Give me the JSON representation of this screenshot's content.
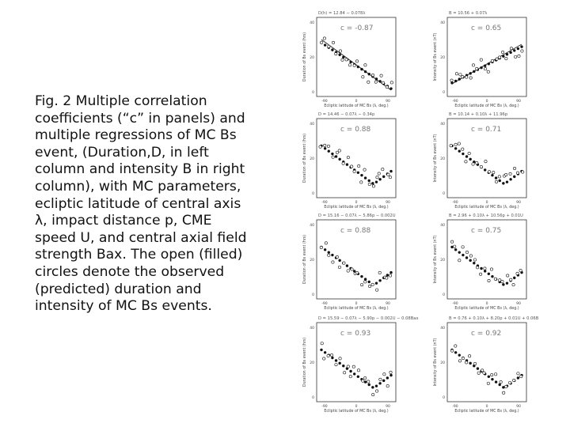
{
  "caption": "Fig. 2  Multiple correlation coefficients (“c” in panels) and multiple regressions of MC Bs event,   (Duration,D, in left column and intensity B in right column), with MC parameters,  ecliptic latitude of central axis λ,  impact distance p, CME speed U, and central axial field strength Bax. The open (filled) circles denote the observed (predicted) duration and intensity of MC Bs events.",
  "figure": {
    "panels": [
      {
        "id": "r1-left",
        "c_label": "c = -0.87",
        "header": "D(h) = 12.84 − 0.078λ",
        "xlabel": "Ecliptic latitude of MC Bs (λ, deg.)",
        "ylabel": "Duration of Bs event (hrs)",
        "trend": "down"
      },
      {
        "id": "r1-right",
        "c_label": "c = 0.65",
        "header": "B = 10.56 + 0.07λ",
        "xlabel": "Ecliptic latitude of MC Bs (λ, deg.)",
        "ylabel": "Intensity of Bs event (nT)",
        "trend": "up"
      },
      {
        "id": "r2-left",
        "c_label": "c = 0.88",
        "header": "D = 14.46 − 0.07λ − 0.34p",
        "xlabel": "Ecliptic latitude of MC Bs (λ, deg.)",
        "ylabel": "Duration of Bs event (hrs)",
        "trend": "vee"
      },
      {
        "id": "r2-right",
        "c_label": "c = 0.71",
        "header": "B = 10.14 + 0.10λ + 11.96p",
        "xlabel": "Ecliptic latitude of MC Bs (λ, deg.)",
        "ylabel": "Intensity of Bs event (nT)",
        "trend": "vee"
      },
      {
        "id": "r3-left",
        "c_label": "c = 0.88",
        "header": "D = 15.16 − 0.07λ − 5.86p − 0.002U",
        "xlabel": "Ecliptic latitude of MC Bs (λ, deg.)",
        "ylabel": "Duration of Bs event (hrs)",
        "trend": "vee"
      },
      {
        "id": "r3-right",
        "c_label": "c = 0.75",
        "header": "B = 2.96 + 0.10λ + 10.56p + 0.01U",
        "xlabel": "Ecliptic latitude of MC Bs (λ, deg.)",
        "ylabel": "Intensity of Bs event (nT)",
        "trend": "vee"
      },
      {
        "id": "r4-left",
        "c_label": "c = 0.93",
        "header": "D = 15.59 − 0.07λ − 5.90p − 0.002U − 0.08Bax",
        "xlabel": "Ecliptic latitude of MC Bs (λ, deg.)",
        "ylabel": "Duration of Bs event (hrs)",
        "trend": "vee"
      },
      {
        "id": "r4-right",
        "c_label": "c = 0.92",
        "header": "B = 0.76 + 0.10λ + 8.20p + 0.01U + 0.06Bax",
        "xlabel": "Ecliptic latitude of MC Bs (λ, deg.)",
        "ylabel": "Intensity of Bs event (nT)",
        "trend": "vee"
      }
    ],
    "xticks": [
      "-90",
      "0",
      "90"
    ],
    "yticks_left": [
      "40",
      "20",
      "0"
    ],
    "yticks_right": [
      "40",
      "20",
      "0"
    ]
  }
}
